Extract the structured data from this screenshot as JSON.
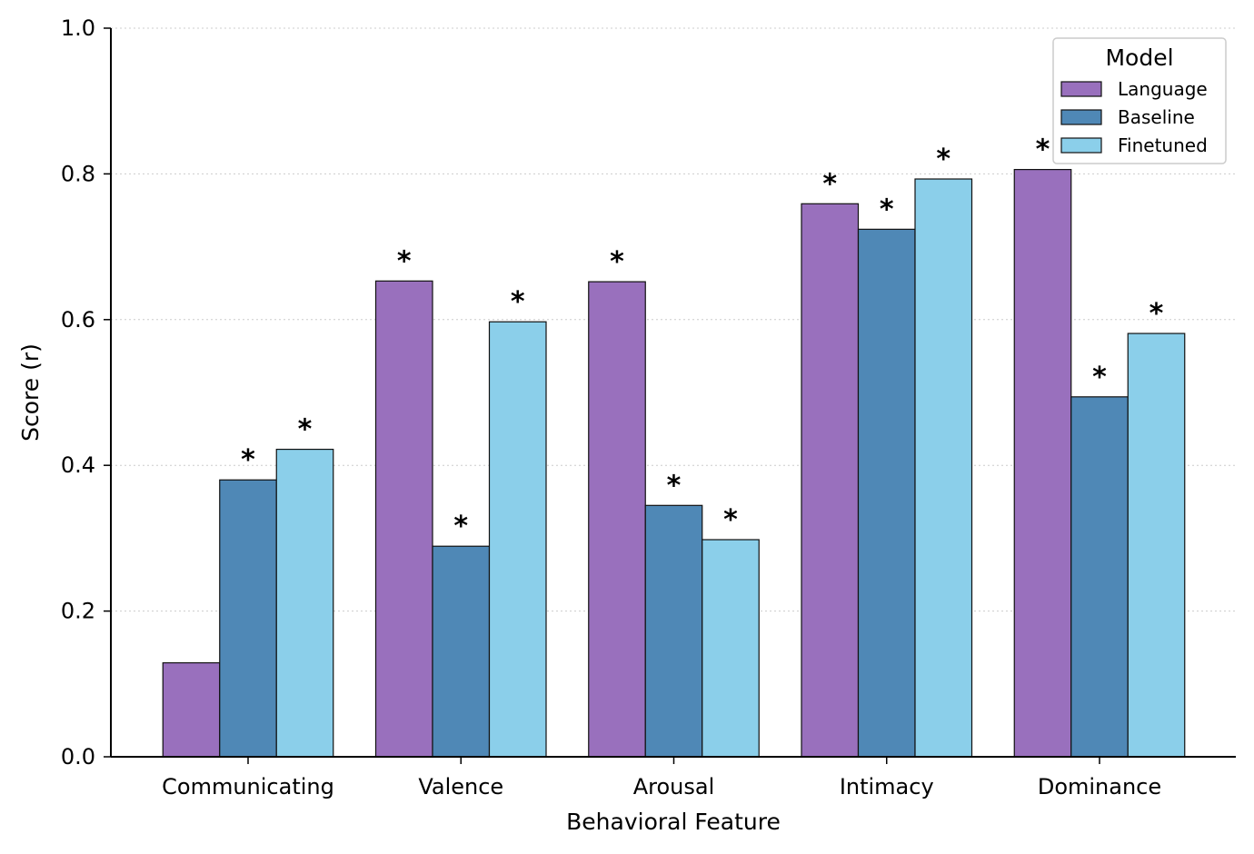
{
  "chart_data": {
    "type": "bar",
    "title": "",
    "xlabel": "Behavioral Feature",
    "ylabel": "Score (r)",
    "ylim": [
      0,
      1.0
    ],
    "yticks": [
      "0.0",
      "0.2",
      "0.4",
      "0.6",
      "0.8",
      "1.0"
    ],
    "grid": "horizontal dotted",
    "legend_title": "Model",
    "legend_position": "top-right",
    "categories": [
      "Communicating",
      "Valence",
      "Arousal",
      "Intimacy",
      "Dominance"
    ],
    "series": [
      {
        "name": "Language",
        "color": "#9970bd",
        "values": [
          0.129,
          0.653,
          0.652,
          0.759,
          0.806
        ],
        "significant": [
          false,
          true,
          true,
          true,
          true
        ]
      },
      {
        "name": "Baseline",
        "color": "#4f88b6",
        "values": [
          0.38,
          0.289,
          0.345,
          0.724,
          0.494
        ],
        "significant": [
          true,
          true,
          true,
          true,
          true
        ]
      },
      {
        "name": "Finetuned",
        "color": "#8bcfea",
        "values": [
          0.422,
          0.597,
          0.298,
          0.793,
          0.581
        ],
        "significant": [
          true,
          true,
          true,
          true,
          true
        ]
      }
    ],
    "significance_marker": "*"
  }
}
